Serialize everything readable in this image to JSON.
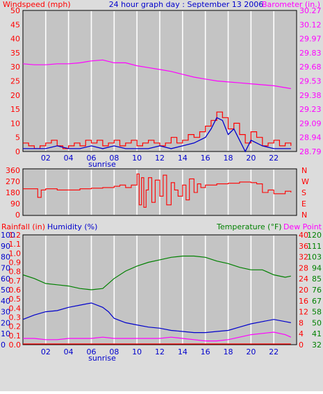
{
  "title": "24 hour graph day : September 13 2006",
  "colors": {
    "windspeed": "#ff0000",
    "avgwind": "#0000cc",
    "barometer": "#ff00ff",
    "direction": "#ff0000",
    "rainfall": "#ff0000",
    "humidity": "#0000cc",
    "temperature": "#008000",
    "dewpoint": "#ff00ff",
    "plot_bg": "#c4c4c4",
    "grid": "#ffffff"
  },
  "chart_data": [
    {
      "type": "line",
      "name": "wind-barometer",
      "left_label": "Windspeed (mph)",
      "right_label": "Barometer (in.)",
      "title": "24 hour graph day : September 13 2006",
      "x_ticks": [
        "02",
        "04",
        "06",
        "08",
        "10",
        "12",
        "14",
        "16",
        "18",
        "20",
        "22"
      ],
      "x_annotation": "sunrise",
      "left_ticks": [
        "0",
        "5",
        "10",
        "15",
        "20",
        "25",
        "30",
        "35",
        "40",
        "45",
        "50"
      ],
      "right_ticks": [
        "28.79",
        "28.94",
        "29.09",
        "29.23",
        "29.38",
        "29.53",
        "29.68",
        "29.83",
        "29.97",
        "30.12",
        "30.27"
      ],
      "ylim_left": [
        0,
        50
      ],
      "ylim_right": [
        28.79,
        30.27
      ],
      "series": [
        {
          "name": "Windspeed (mph)",
          "axis": "left",
          "hours": [
            0,
            0.5,
            1,
            1.5,
            2,
            2.5,
            3,
            3.5,
            4,
            4.5,
            5,
            5.5,
            6,
            6.5,
            7,
            7.5,
            8,
            8.5,
            9,
            9.5,
            10,
            10.5,
            11,
            11.5,
            12,
            12.5,
            13,
            13.5,
            14,
            14.5,
            15,
            15.5,
            16,
            16.5,
            17,
            17.5,
            18,
            18.5,
            19,
            19.5,
            20,
            20.5,
            21,
            21.5,
            22,
            22.5,
            23,
            23.5
          ],
          "values": [
            3,
            2,
            1,
            2,
            3,
            4,
            2,
            1,
            2,
            3,
            2,
            4,
            3,
            4,
            2,
            3,
            4,
            2,
            3,
            4,
            2,
            3,
            4,
            3,
            2,
            3,
            5,
            3,
            4,
            6,
            5,
            7,
            9,
            11,
            14,
            12,
            8,
            10,
            6,
            3,
            7,
            5,
            2,
            3,
            4,
            2,
            3,
            2
          ]
        },
        {
          "name": "Average wind",
          "axis": "left",
          "hours": [
            0,
            1,
            2,
            3,
            4,
            5,
            6,
            7,
            8,
            9,
            10,
            11,
            12,
            13,
            14,
            15,
            16,
            16.5,
            17,
            17.5,
            18,
            18.5,
            19,
            19.5,
            20,
            21,
            22,
            23,
            23.5
          ],
          "values": [
            1,
            1,
            1,
            2,
            1,
            1,
            2,
            1,
            2,
            1,
            1,
            1,
            2,
            1,
            2,
            3,
            5,
            8,
            12,
            11,
            6,
            8,
            4,
            0,
            4,
            2,
            1,
            1,
            1
          ]
        },
        {
          "name": "Barometer (in.)",
          "axis": "right",
          "hours": [
            0,
            1,
            2,
            3,
            4,
            5,
            6,
            7,
            8,
            9,
            10,
            11,
            12,
            13,
            14,
            15,
            16,
            17,
            18,
            19,
            20,
            21,
            22,
            23,
            23.5
          ],
          "values": [
            29.71,
            29.7,
            29.7,
            29.71,
            29.71,
            29.72,
            29.74,
            29.75,
            29.72,
            29.72,
            29.69,
            29.67,
            29.65,
            29.63,
            29.6,
            29.57,
            29.55,
            29.53,
            29.52,
            29.51,
            29.5,
            29.49,
            29.48,
            29.46,
            29.45
          ]
        }
      ]
    },
    {
      "type": "line",
      "name": "wind-direction",
      "left_ticks": [
        "0",
        "90",
        "180",
        "270",
        "360"
      ],
      "right_ticks": [
        "N",
        "E",
        "S",
        "W",
        "N"
      ],
      "ylim": [
        0,
        360
      ],
      "series": [
        {
          "name": "Wind direction",
          "hours": [
            0,
            1,
            1.3,
            1.6,
            2,
            3,
            4,
            5,
            6,
            7,
            8,
            8.5,
            9,
            9.5,
            10,
            10.2,
            10.4,
            10.6,
            10.8,
            11,
            11.3,
            11.6,
            12,
            12.3,
            12.6,
            13,
            13.3,
            13.6,
            14,
            14.3,
            14.6,
            15,
            15.3,
            15.6,
            16,
            16.5,
            17,
            18,
            19,
            20,
            20.5,
            21,
            21.5,
            22,
            23,
            23.5
          ],
          "values": [
            210,
            210,
            140,
            200,
            210,
            200,
            200,
            210,
            215,
            220,
            230,
            240,
            220,
            240,
            330,
            80,
            300,
            60,
            200,
            300,
            100,
            280,
            150,
            320,
            80,
            260,
            200,
            150,
            240,
            120,
            290,
            180,
            250,
            220,
            240,
            240,
            250,
            255,
            265,
            260,
            250,
            180,
            200,
            170,
            190,
            180
          ]
        }
      ]
    },
    {
      "type": "line",
      "name": "rain-humidity-temperature",
      "left_label_rain": "Rainfall (in)",
      "left_label_humidity": "Humidity (%)",
      "right_label_temp": "Temperature (°F)",
      "right_label_dew": "Dew Point",
      "x_ticks": [
        "02",
        "04",
        "06",
        "08",
        "10",
        "12",
        "14",
        "16",
        "18",
        "20",
        "22"
      ],
      "x_annotation": "sunrise",
      "humidity_ticks": [
        "0",
        "10",
        "20",
        "30",
        "40",
        "50",
        "60",
        "70",
        "80",
        "90",
        "100"
      ],
      "rain_ticks": [
        "0.0",
        "0.1",
        "0.2",
        "0.3",
        "0.4",
        "0.5",
        "0.6",
        "0.7",
        "0.8",
        "0.9",
        "1.0",
        "1.1",
        "1.2"
      ],
      "celsius_ticks": [
        "0",
        "4",
        "8",
        "12",
        "16",
        "20",
        "24",
        "28",
        "32",
        "36",
        "40"
      ],
      "fahrenheit_ticks": [
        "32",
        "41",
        "50",
        "58",
        "67",
        "76",
        "85",
        "94",
        "103",
        "111",
        "120"
      ],
      "ylim_humidity": [
        0,
        100
      ],
      "ylim_temp_f": [
        32,
        120
      ],
      "series": [
        {
          "name": "Temperature (°F)",
          "axis": "temp_f",
          "hours": [
            0,
            1,
            2,
            3,
            4,
            5,
            6,
            7,
            8,
            9,
            10,
            11,
            12,
            13,
            14,
            15,
            16,
            17,
            18,
            19,
            20,
            21,
            22,
            23,
            23.5
          ],
          "values": [
            88,
            85,
            81,
            80,
            79,
            77,
            76,
            77,
            85,
            91,
            95,
            98,
            100,
            102,
            103,
            103,
            102,
            99,
            97,
            94,
            92,
            92,
            88,
            86,
            87
          ]
        },
        {
          "name": "Humidity (%)",
          "axis": "humidity",
          "hours": [
            0,
            1,
            2,
            3,
            4,
            5,
            6,
            7,
            7.5,
            8,
            9,
            10,
            11,
            12,
            13,
            14,
            15,
            16,
            17,
            18,
            19,
            20,
            21,
            22,
            23,
            23.5
          ],
          "values": [
            23,
            27,
            30,
            31,
            34,
            36,
            38,
            34,
            30,
            24,
            20,
            18,
            16,
            15,
            13,
            12,
            11,
            11,
            12,
            13,
            16,
            19,
            21,
            23,
            21,
            20
          ]
        },
        {
          "name": "Dew Point",
          "axis": "temp_f",
          "hours": [
            0,
            1,
            2,
            3,
            4,
            5,
            6,
            7,
            8,
            9,
            10,
            11,
            12,
            13,
            14,
            15,
            16,
            17,
            18,
            19,
            20,
            21,
            22,
            23,
            23.5
          ],
          "values": [
            37,
            37,
            36,
            36,
            37,
            37,
            37,
            38,
            37,
            37,
            37,
            37,
            37,
            38,
            37,
            36,
            35,
            35,
            36,
            38,
            40,
            41,
            42,
            40,
            38
          ]
        },
        {
          "name": "Rainfall (in)",
          "axis": "rain",
          "hours": [
            0,
            23.5
          ],
          "values": [
            0,
            0
          ]
        }
      ]
    }
  ]
}
